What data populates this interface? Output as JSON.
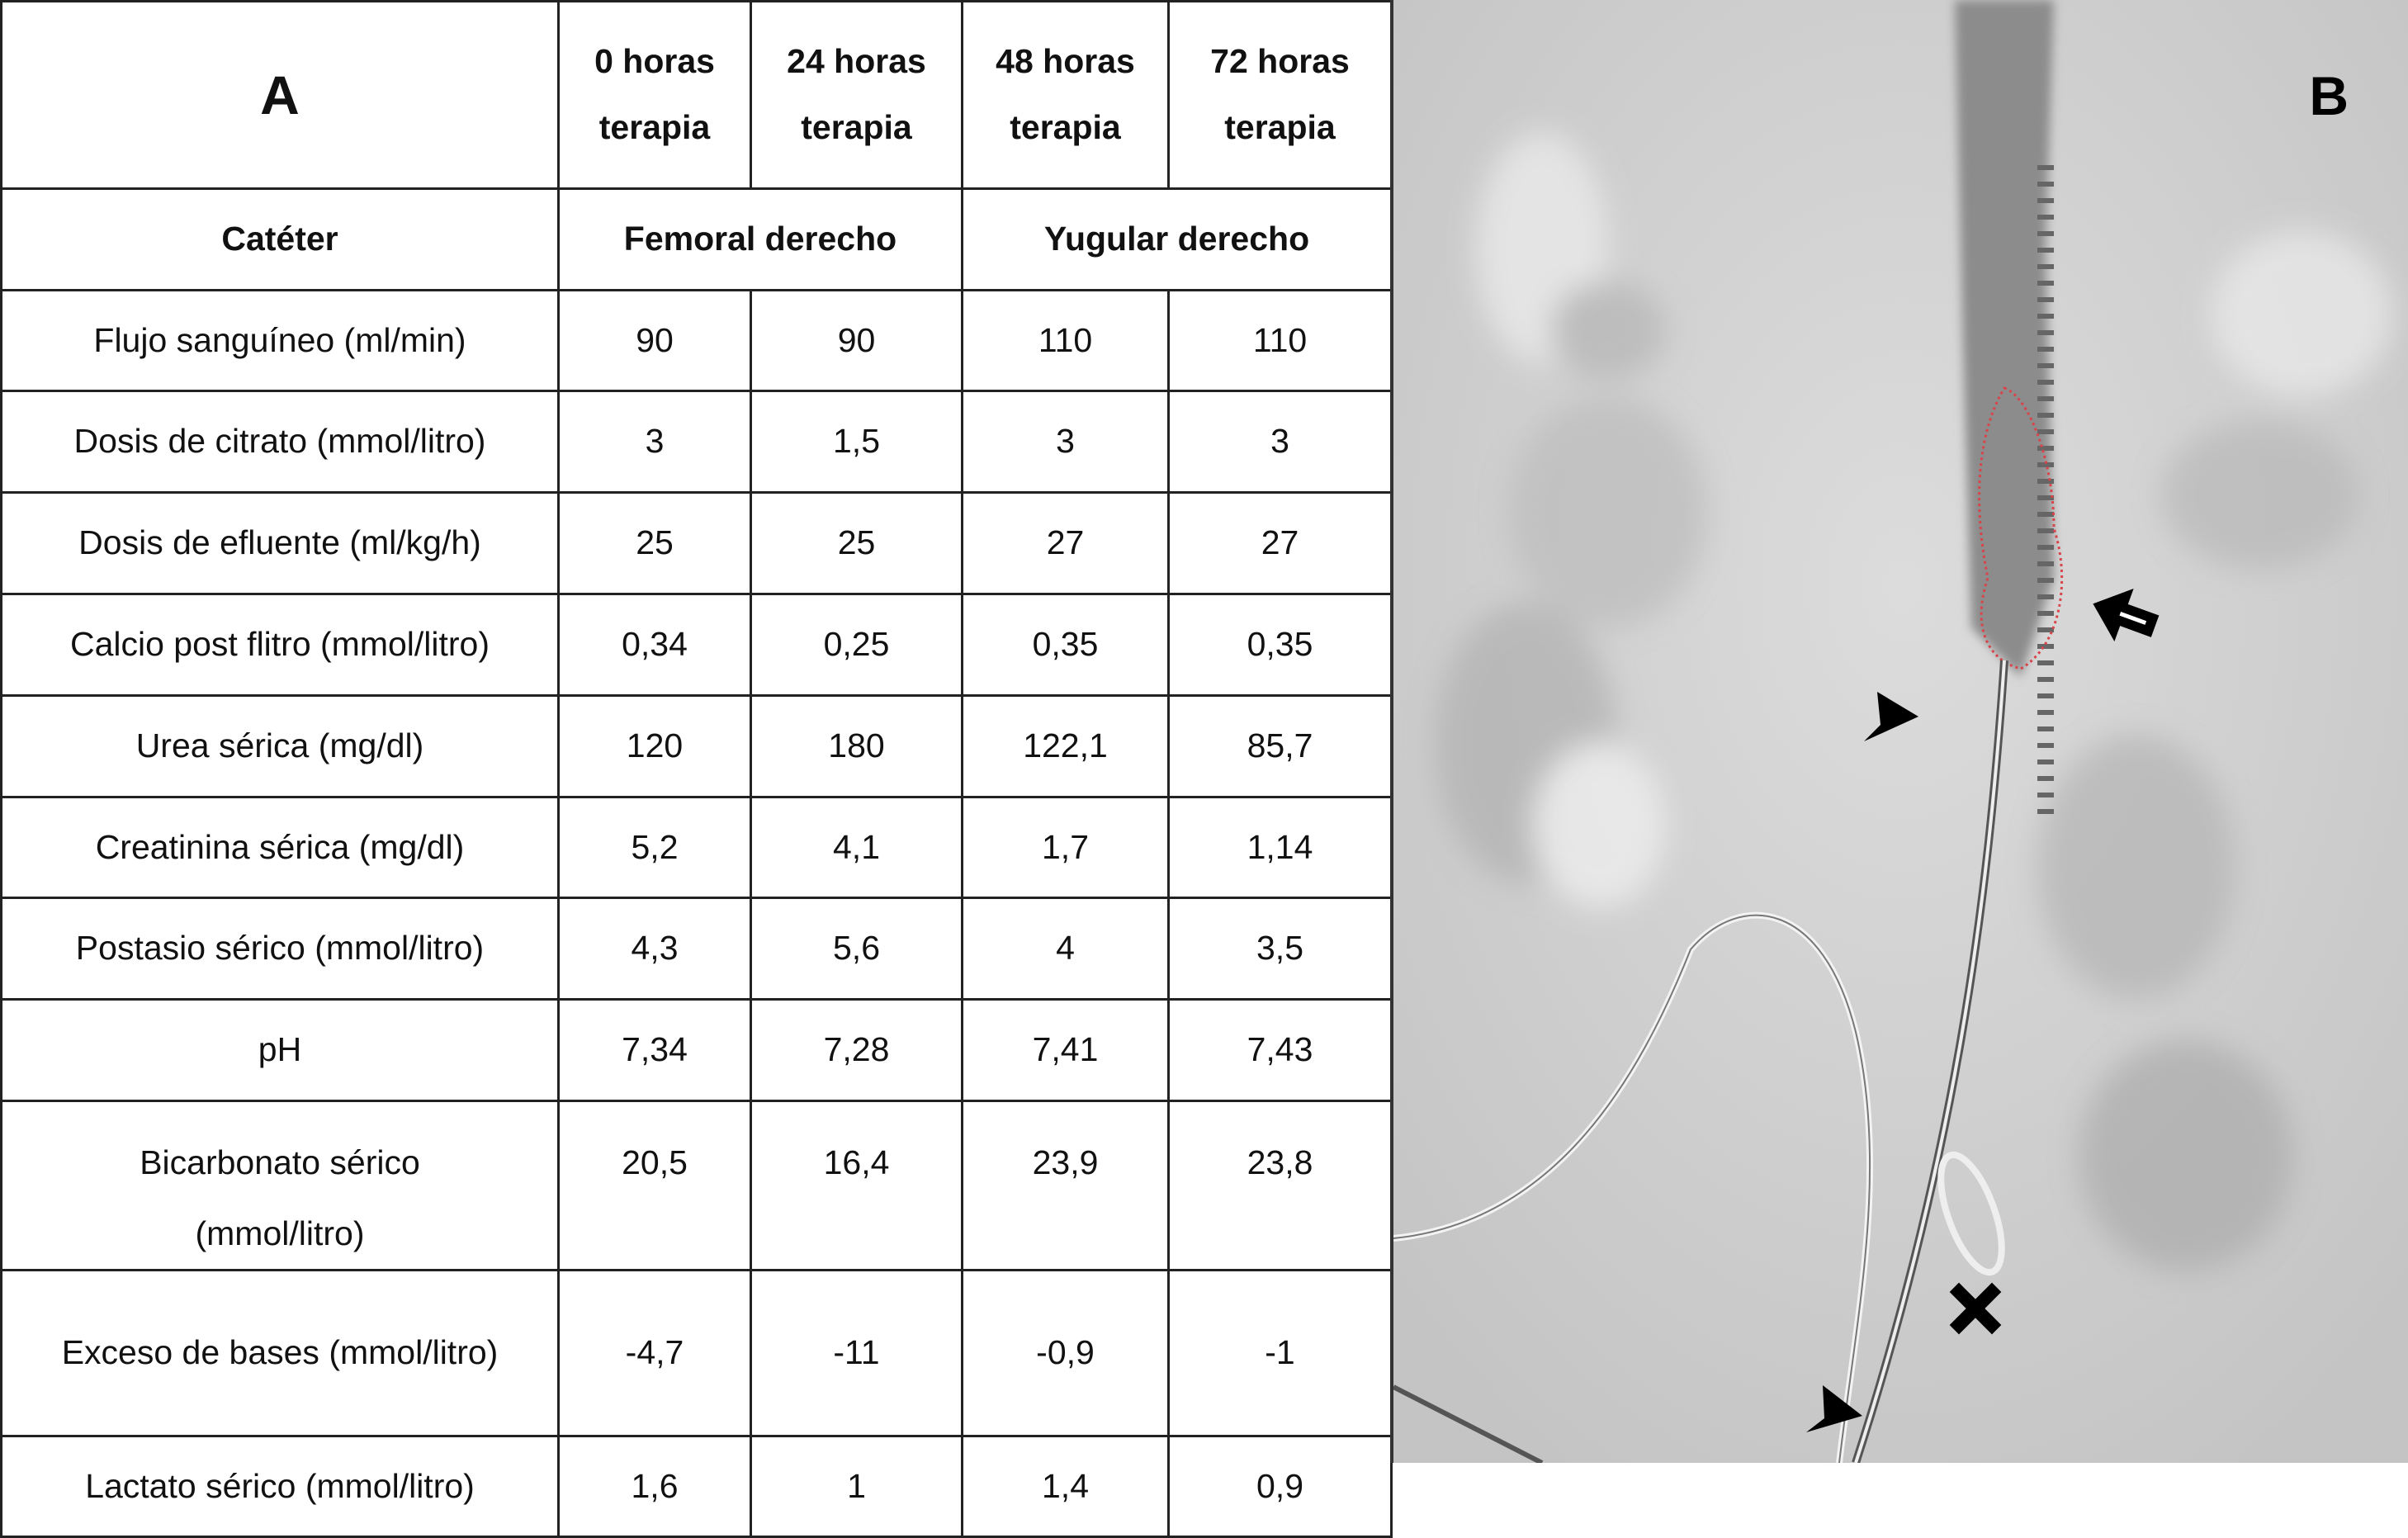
{
  "panel_a": {
    "label": "A",
    "columns": [
      "0 horas terapia",
      "24 horas terapia",
      "48 horas terapia",
      "72 horas terapia"
    ],
    "catheter": {
      "label": "Catéter",
      "groups": [
        "Femoral derecho",
        "Yugular derecho"
      ]
    },
    "rows": [
      {
        "label": "Flujo sanguíneo (ml/min)",
        "values": [
          "90",
          "90",
          "110",
          "110"
        ]
      },
      {
        "label": "Dosis de citrato  (mmol/litro)",
        "values": [
          "3",
          "1,5",
          "3",
          "3"
        ]
      },
      {
        "label": "Dosis de efluente (ml/kg/h)",
        "values": [
          "25",
          "25",
          "27",
          "27"
        ]
      },
      {
        "label": "Calcio post flitro (mmol/litro)",
        "values": [
          "0,34",
          "0,25",
          "0,35",
          "0,35"
        ]
      },
      {
        "label": "Urea sérica (mg/dl)",
        "values": [
          "120",
          "180",
          "122,1",
          "85,7"
        ]
      },
      {
        "label": "Creatinina sérica (mg/dl)",
        "values": [
          "5,2",
          "4,1",
          "1,7",
          "1,14"
        ]
      },
      {
        "label": "Postasio sérico (mmol/litro)",
        "values": [
          "4,3",
          "5,6",
          "4",
          "3,5"
        ]
      },
      {
        "label": "pH",
        "values": [
          "7,34",
          "7,28",
          "7,41",
          "7,43"
        ]
      },
      {
        "label": "Bicarbonato sérico (mmol/litro)",
        "values": [
          "20,5",
          "16,4",
          "23,9",
          "23,8"
        ]
      },
      {
        "label": "Exceso de bases (mmol/litro)",
        "values": [
          "-4,7",
          "-11",
          "-0,9",
          "-1"
        ]
      },
      {
        "label": "Lactato sérico (mmol/litro)",
        "values": [
          "1,6",
          "1",
          "1,4",
          "0,9"
        ]
      }
    ]
  },
  "panel_b": {
    "label": "B",
    "annotations": [
      "arrow-icon",
      "arrowhead-icon",
      "arrowhead-icon",
      "x-mark-icon"
    ],
    "thrombus_outline_color": "#d9434a"
  }
}
